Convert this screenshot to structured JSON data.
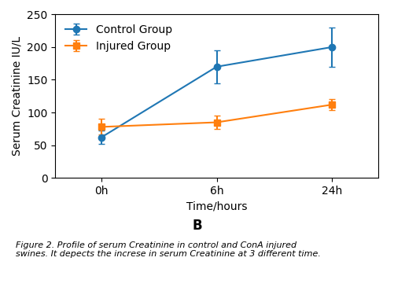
{
  "chart_data": {
    "type": "line",
    "categories": [
      "0h",
      "6h",
      "24h"
    ],
    "xlabel": "Time/hours",
    "ylabel": "Serum Creatinine IU/L",
    "ylim": [
      0,
      250
    ],
    "yticks": [
      0,
      50,
      100,
      150,
      200,
      250
    ],
    "legend": "upper left",
    "series": [
      {
        "name": "Control Group",
        "values": [
          62,
          170,
          200
        ],
        "errors": [
          10,
          25,
          30
        ],
        "marker": "circle"
      },
      {
        "name": "Injured Group",
        "values": [
          78,
          85,
          112
        ],
        "errors": [
          12,
          10,
          8
        ],
        "marker": "square"
      }
    ],
    "annotations": [
      "B",
      "Figure 2. Profile of serum Creatinine in control and ConA injured\nswines. It depects the increse in serum Creatinine at 3 different time."
    ]
  }
}
